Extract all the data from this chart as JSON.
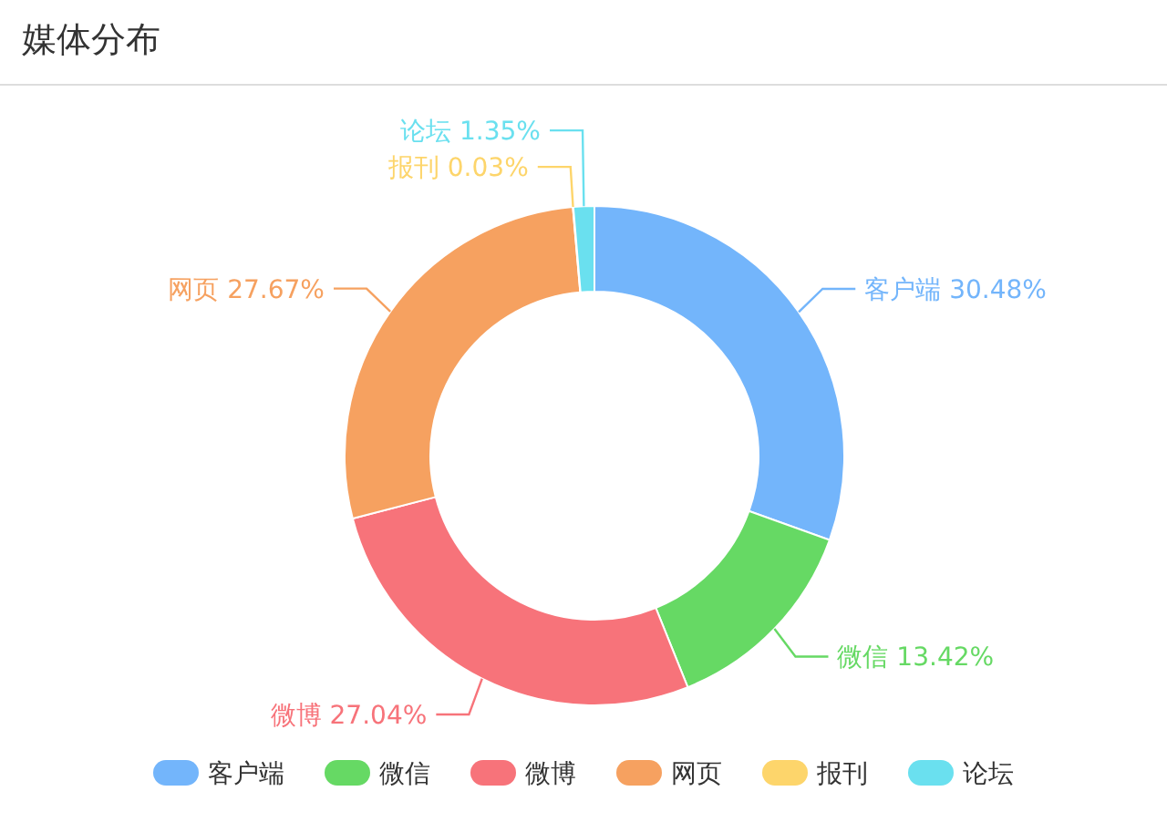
{
  "chart_data": {
    "type": "donut",
    "title": "媒体分布",
    "legend": "bottom",
    "categories": [
      "客户端",
      "微信",
      "微博",
      "网页",
      "报刊",
      "论坛"
    ],
    "values": [
      30.48,
      13.42,
      27.04,
      27.67,
      0.03,
      1.35
    ],
    "colors": [
      "#73b5fb",
      "#66d964",
      "#f7737a",
      "#f6a160",
      "#fdd56b",
      "#6ae0ef"
    ],
    "value_labels": [
      "客户端 30.48%",
      "微信 13.42%",
      "微博 27.04%",
      "网页 27.67%",
      "报刊 0.03%",
      "论坛 1.35%"
    ]
  }
}
